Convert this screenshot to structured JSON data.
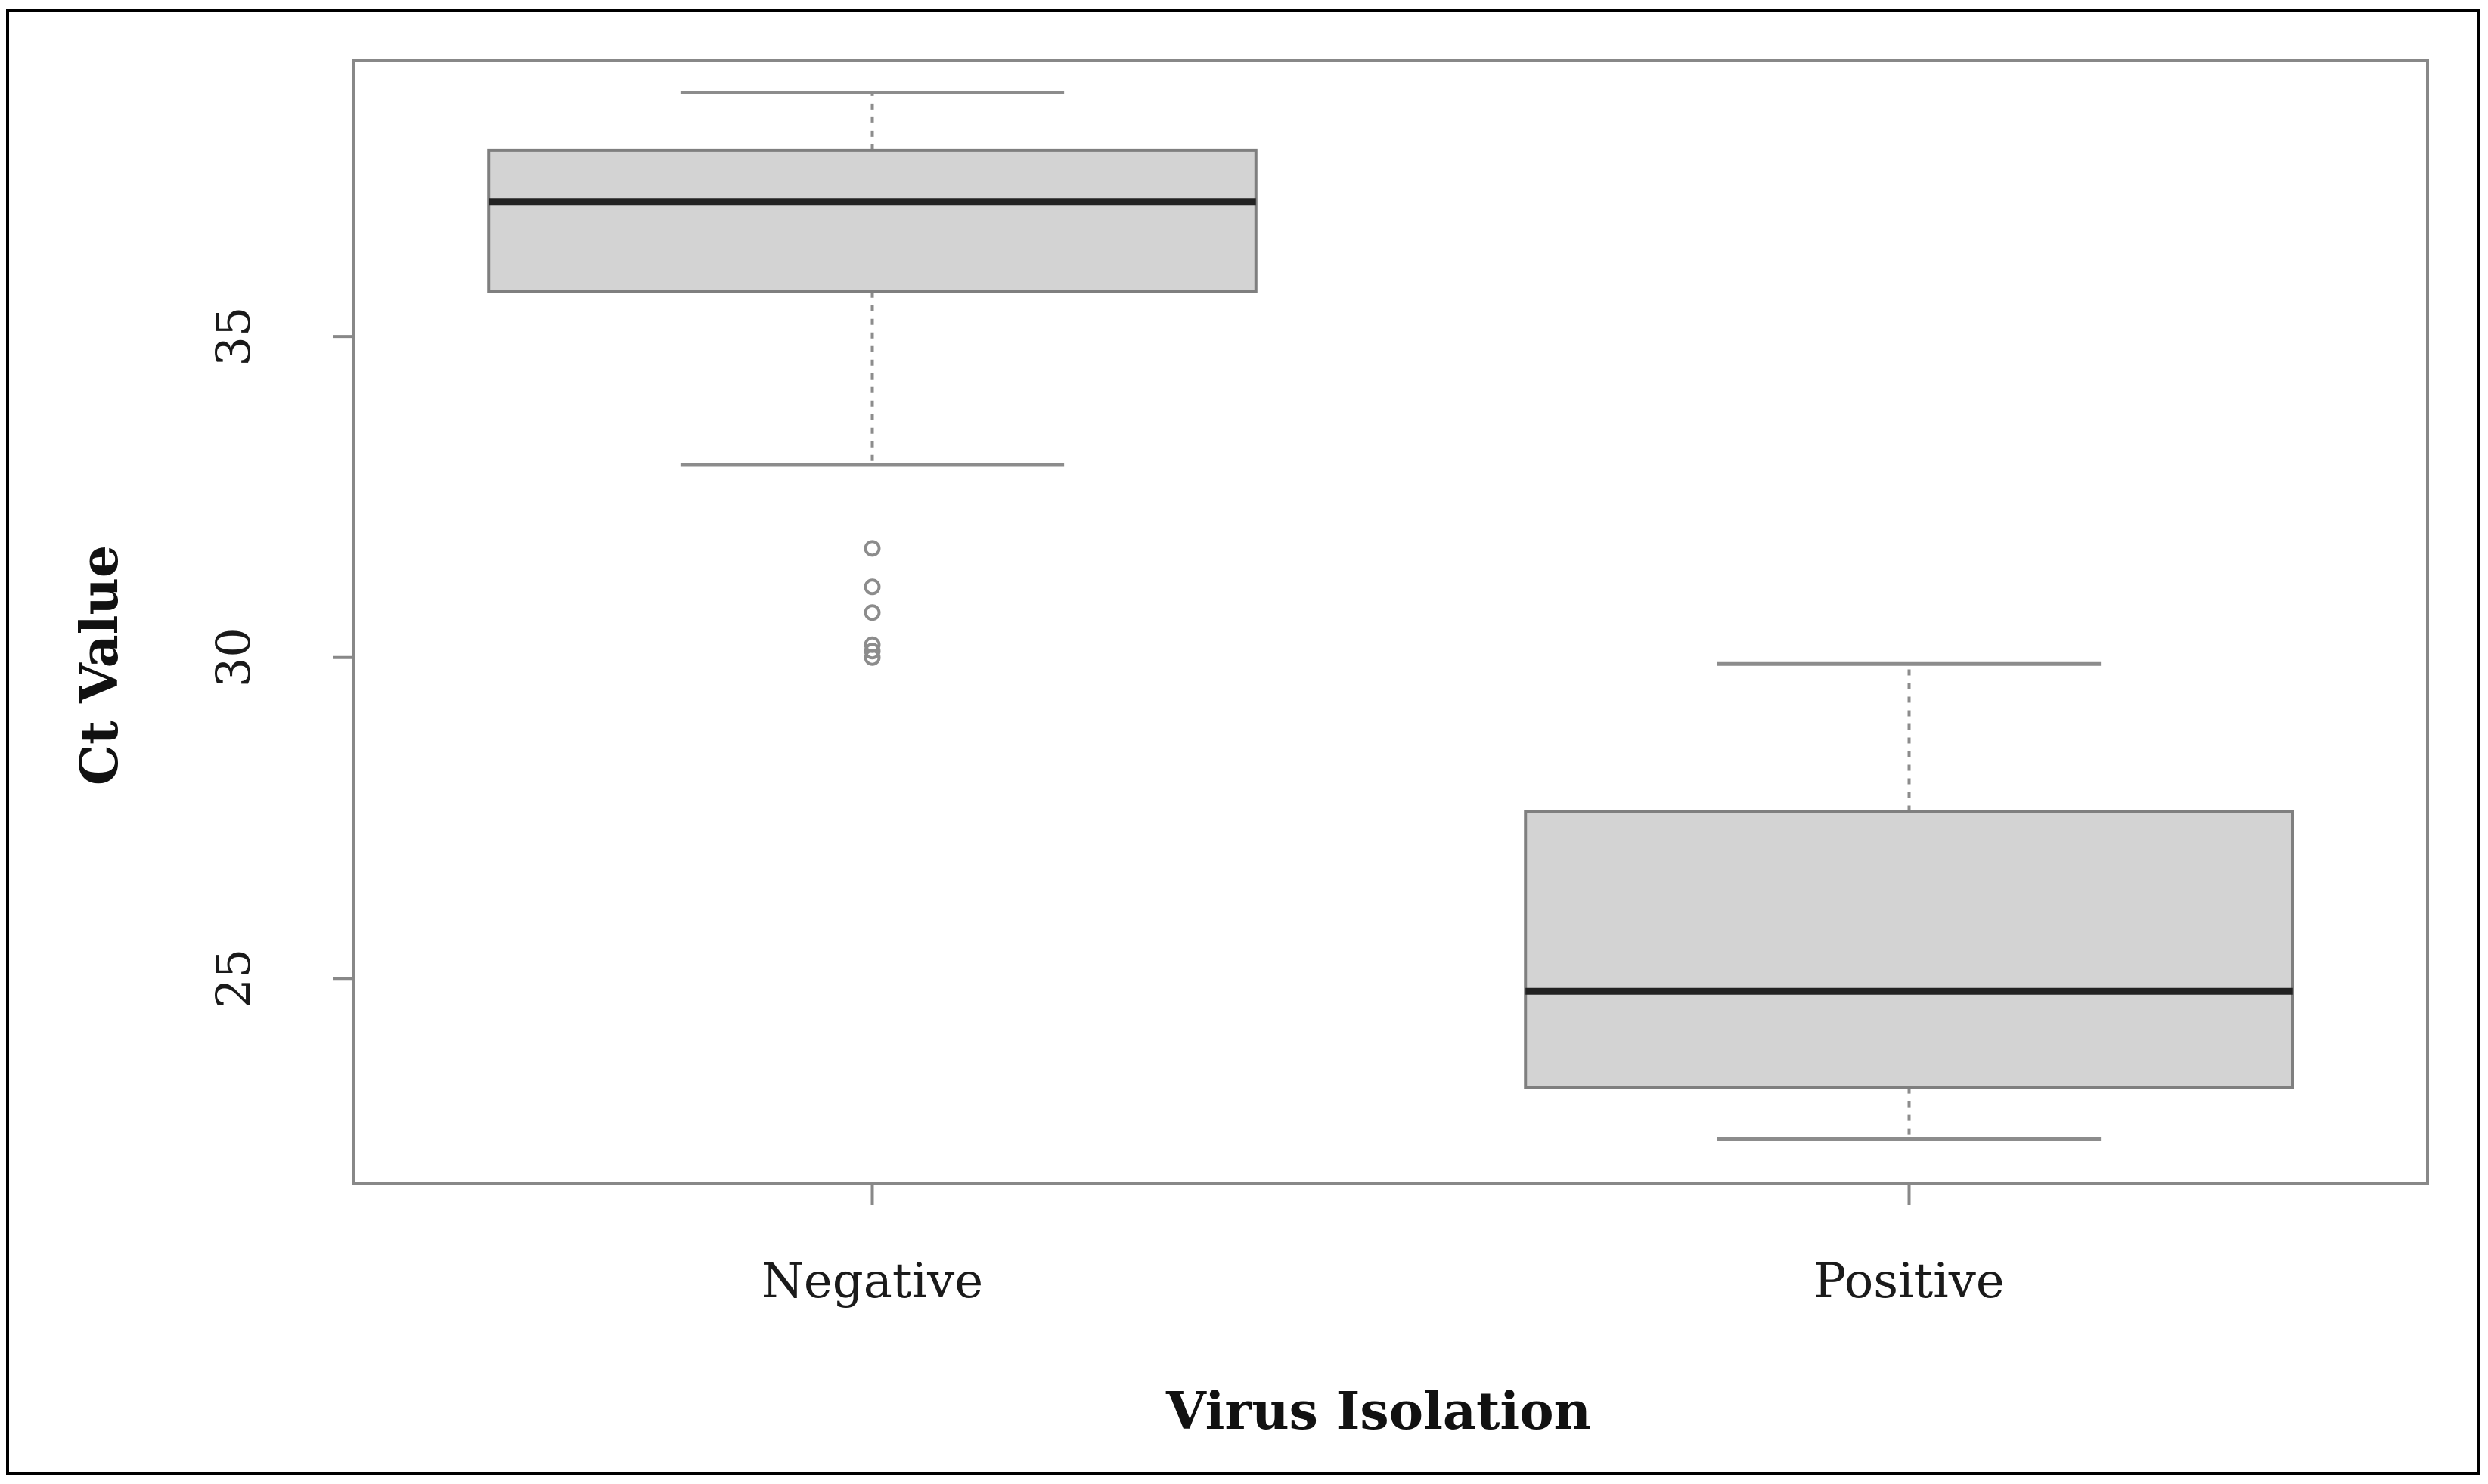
{
  "chart_data": {
    "type": "boxplot",
    "title": "",
    "xlabel": "Virus Isolation",
    "ylabel": "Ct Value",
    "ylim": [
      21.8,
      39.3
    ],
    "yticks": [
      25,
      30,
      35
    ],
    "ytick_labels": [
      "25",
      "30",
      "35"
    ],
    "grid": false,
    "categories": [
      "Negative",
      "Positive"
    ],
    "boxes": [
      {
        "name": "Negative",
        "whisker_low": 33.0,
        "q1": 35.7,
        "median": 37.1,
        "q3": 37.9,
        "whisker_high": 38.8,
        "outliers": [
          31.7,
          31.1,
          30.7,
          30.2,
          30.1,
          30.0
        ]
      },
      {
        "name": "Positive",
        "whisker_low": 22.5,
        "q1": 23.3,
        "median": 24.8,
        "q3": 27.6,
        "whisker_high": 29.9,
        "outliers": []
      }
    ],
    "colors": {
      "box_fill": "#d3d3d3",
      "box_stroke": "#7f7f7f",
      "median": "#222222",
      "whisker": "#8c8c8c",
      "outlier": "#8c8c8c",
      "frame": "#888888",
      "outer_border": "#000000"
    }
  }
}
